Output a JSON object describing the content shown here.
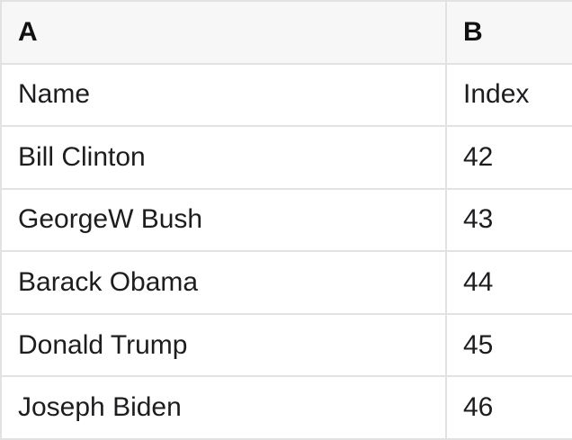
{
  "colors": {
    "header_background": "#f7f7f7",
    "border": "#e2e2e2",
    "text": "#1d1d1f",
    "row_background": "#ffffff"
  },
  "table": {
    "column_headers": [
      {
        "letter": "A"
      },
      {
        "letter": "B"
      }
    ],
    "rows": [
      {
        "a": "Name",
        "b": "Index"
      },
      {
        "a": "Bill Clinton",
        "b": "42"
      },
      {
        "a": "GeorgeW Bush",
        "b": "43"
      },
      {
        "a": "Barack Obama",
        "b": "44"
      },
      {
        "a": "Donald Trump",
        "b": "45"
      },
      {
        "a": "Joseph Biden",
        "b": "46"
      }
    ]
  }
}
